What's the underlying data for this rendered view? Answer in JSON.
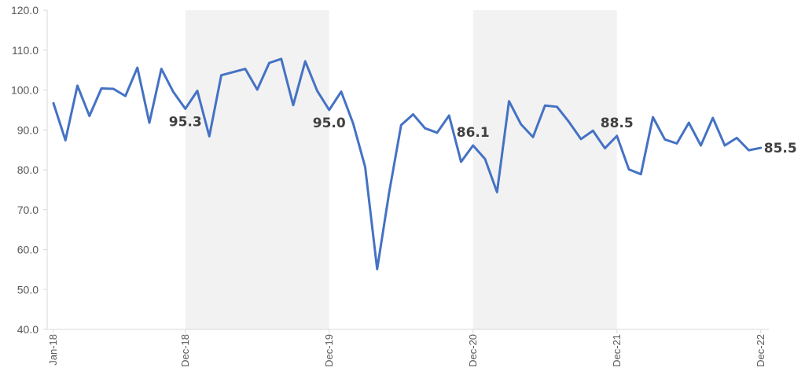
{
  "chart_data": {
    "type": "line",
    "title": "",
    "xlabel": "",
    "ylabel": "",
    "ylim": [
      40,
      120
    ],
    "yticks": [
      "40.0",
      "50.0",
      "60.0",
      "70.0",
      "80.0",
      "90.0",
      "100.0",
      "110.0",
      "120.0"
    ],
    "grid": false,
    "legend": "none",
    "line_color": "#4472C4",
    "shade_color": "#F2F2F2",
    "axis_color": "#D9D9D9",
    "x_tick_labels": [
      {
        "index": 0,
        "label": "Jan-18"
      },
      {
        "index": 11,
        "label": "Dec-18"
      },
      {
        "index": 23,
        "label": "Dec-19"
      },
      {
        "index": 35,
        "label": "Dec-20"
      },
      {
        "index": 47,
        "label": "Dec-21"
      },
      {
        "index": 59,
        "label": "Dec-22"
      }
    ],
    "shaded_ranges": [
      [
        11,
        23
      ],
      [
        35,
        47
      ]
    ],
    "series": [
      {
        "values": [
          96.7,
          87.4,
          101.1,
          93.5,
          100.4,
          100.3,
          98.5,
          105.6,
          91.8,
          105.3,
          99.5,
          95.3,
          99.8,
          88.4,
          103.7,
          104.5,
          105.3,
          100.1,
          106.8,
          107.8,
          96.2,
          107.2,
          99.8,
          95.0,
          99.6,
          91.6,
          80.7,
          55.1,
          74.3,
          91.2,
          93.9,
          90.4,
          89.3,
          93.6,
          82.0,
          86.1,
          82.7,
          74.4,
          97.2,
          91.4,
          88.2,
          96.1,
          95.8,
          92.0,
          87.7,
          89.8,
          85.4,
          88.5,
          80.1,
          78.9,
          93.2,
          87.6,
          86.6,
          91.8,
          86.1,
          93.0,
          86.1,
          88.0,
          84.9,
          85.5
        ]
      }
    ],
    "data_labels": [
      {
        "index": 11,
        "text": "95.3",
        "pos": "below"
      },
      {
        "index": 23,
        "text": "95.0",
        "pos": "below"
      },
      {
        "index": 35,
        "text": "86.1",
        "pos": "above"
      },
      {
        "index": 47,
        "text": "88.5",
        "pos": "above"
      },
      {
        "index": 59,
        "text": "85.5",
        "pos": "right"
      }
    ]
  }
}
